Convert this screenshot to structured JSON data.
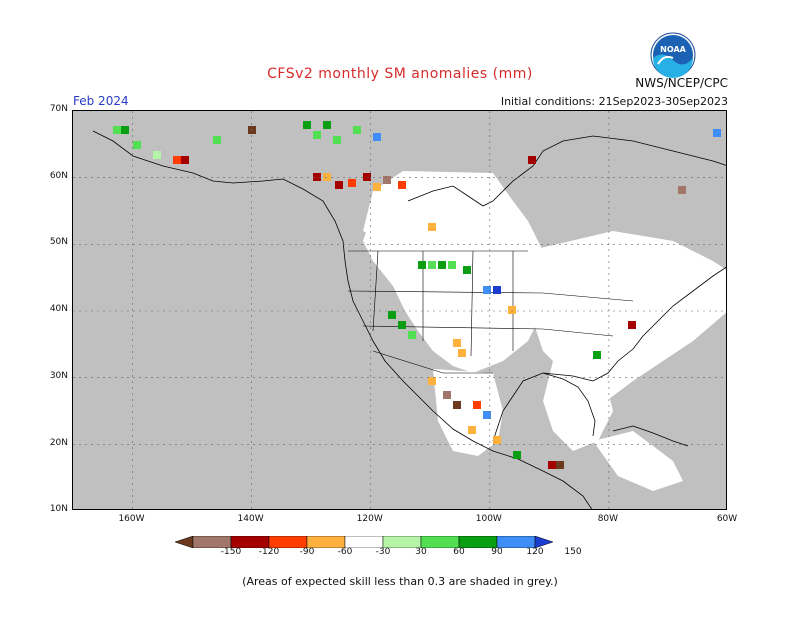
{
  "title": "CFSv2 monthly SM anomalies (mm)",
  "agency": "NWS/NCEP/CPC",
  "logo_text": "NOAA",
  "month": "Feb 2024",
  "initial_conditions": "Initial conditions: 21Sep2023-30Sep2023",
  "lat_labels": [
    "70N",
    "60N",
    "50N",
    "40N",
    "30N",
    "20N",
    "10N"
  ],
  "lon_labels": [
    "160W",
    "140W",
    "120W",
    "100W",
    "80W",
    "60W"
  ],
  "colorbar": {
    "ticks": [
      "-150",
      "-120",
      "-90",
      "-60",
      "-30",
      "30",
      "60",
      "90",
      "120",
      "150"
    ],
    "colors": [
      "#6b3a1f",
      "#a0776a",
      "#a50000",
      "#ff3d00",
      "#ffb13d",
      "#ffffff",
      "#b6f5a8",
      "#52e052",
      "#0a9e13",
      "#3f8ef5",
      "#1a3ccf"
    ]
  },
  "footnote": "(Areas of expected skill less than 0.3 are shaded in grey.)",
  "colors": {
    "title": "#d62b2b",
    "month": "#2a3bc8",
    "skill_mask": "#c0c0c0"
  }
}
